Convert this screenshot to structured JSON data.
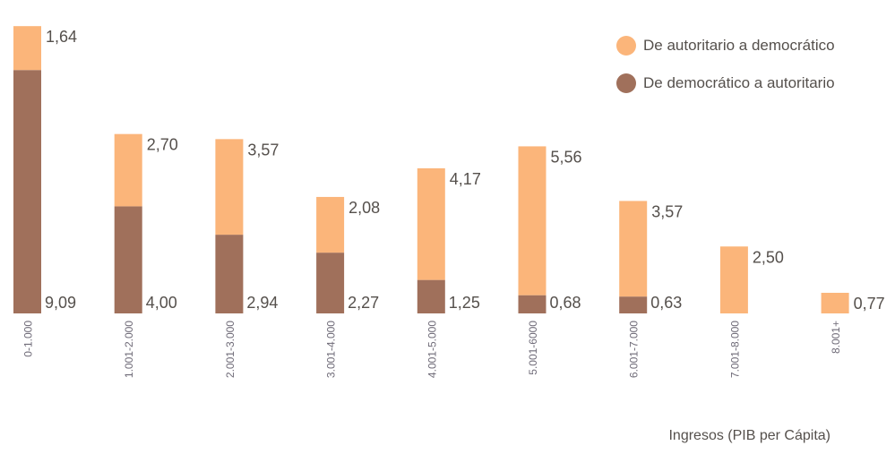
{
  "chart_data": {
    "type": "bar",
    "stacked": true,
    "categories": [
      "0-1.000",
      "1.001-2.000",
      "2.001-3.000",
      "3.001-4.000",
      "4.001-5.000",
      "5.001-6000",
      "6.001-7.000",
      "7.001-8.000",
      "8.001+"
    ],
    "series": [
      {
        "name": "De democrático a autoritario",
        "color": "#a0705b",
        "values": [
          9.09,
          4.0,
          2.94,
          2.27,
          1.25,
          0.68,
          0.63,
          null,
          null
        ],
        "labels": [
          "9,09",
          "4,00",
          "2,94",
          "2,27",
          "1,25",
          "0,68",
          "0,63",
          "",
          ""
        ]
      },
      {
        "name": "De autoritario a democrático",
        "color": "#fbb57a",
        "values": [
          1.64,
          2.7,
          3.57,
          2.08,
          4.17,
          5.56,
          3.57,
          2.5,
          0.77
        ],
        "labels": [
          "1,64",
          "2,70",
          "3,57",
          "2,08",
          "4,17",
          "5,56",
          "3,57",
          "2,50",
          "0,77"
        ]
      }
    ],
    "xlabel": "Ingresos (PIB per Cápita)",
    "ylabel": "",
    "legend_position": "top-right",
    "grid": false,
    "axes_visible": false
  },
  "legend": {
    "items": [
      {
        "label": "De autoritario a democrático",
        "color": "#fbb57a"
      },
      {
        "label": "De democrático a autoritario",
        "color": "#a0705b"
      }
    ]
  },
  "colors": {
    "text": "#55504c",
    "tick_text": "#6e6a77"
  }
}
